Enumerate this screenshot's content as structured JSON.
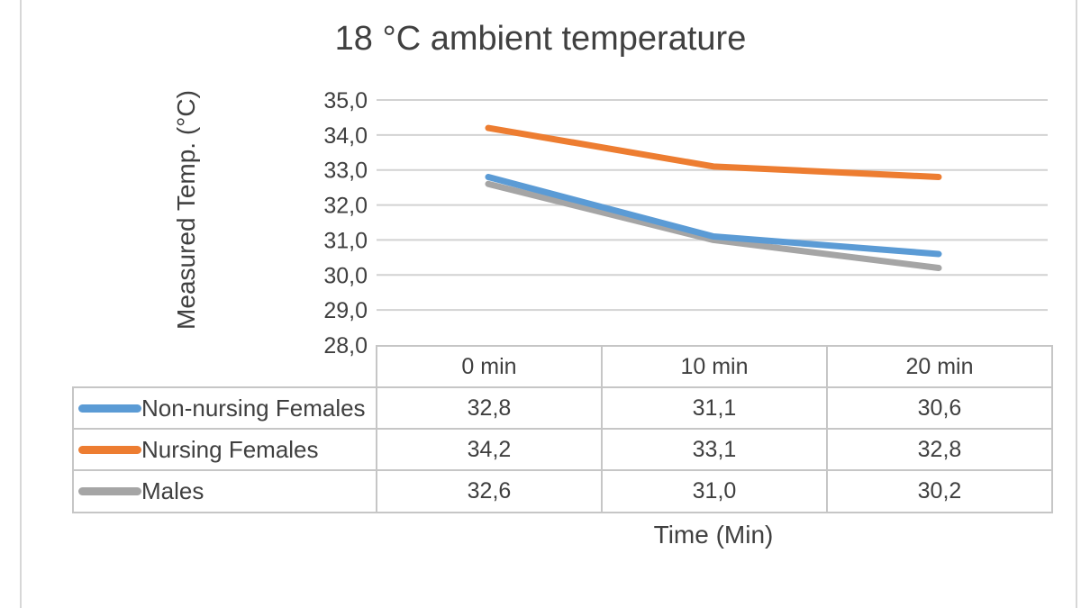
{
  "chart": {
    "title": "18 °C ambient temperature",
    "y_axis_title": "Measured Temp. (°C)",
    "x_axis_title": "Time (Min)"
  },
  "chart_data": {
    "type": "line",
    "title": "18 °C ambient temperature",
    "xlabel": "Time (Min)",
    "ylabel": "Measured Temp. (°C)",
    "categories": [
      "0 min",
      "10 min",
      "20 min"
    ],
    "series": [
      {
        "name": "Non-nursing Females",
        "color": "#5B9BD5",
        "values": [
          32.8,
          31.1,
          30.6
        ]
      },
      {
        "name": "Nursing Females",
        "color": "#ED7D31",
        "values": [
          34.2,
          33.1,
          32.8
        ]
      },
      {
        "name": "Males",
        "color": "#A5A5A5",
        "values": [
          32.6,
          31.0,
          30.2
        ]
      }
    ],
    "draw_order": [
      2,
      0,
      1
    ],
    "ylim": [
      28.0,
      35.0
    ],
    "ytick_step": 1.0,
    "ytick_labels": [
      "28,0",
      "29,0",
      "30,0",
      "31,0",
      "32,0",
      "33,0",
      "34,0",
      "35,0"
    ],
    "grid": true,
    "gridline_color": "#d2d2d2",
    "legend_position": "left-of-data-table",
    "decimal_separator": ","
  },
  "table": {
    "column_headers": [
      "0 min",
      "10 min",
      "20 min"
    ],
    "rows": [
      {
        "label": "Non-nursing Females",
        "values": [
          "32,8",
          "31,1",
          "30,6"
        ]
      },
      {
        "label": "Nursing Females",
        "values": [
          "34,2",
          "33,1",
          "32,8"
        ]
      },
      {
        "label": "Males",
        "values": [
          "32,6",
          "31,0",
          "30,2"
        ]
      }
    ]
  }
}
